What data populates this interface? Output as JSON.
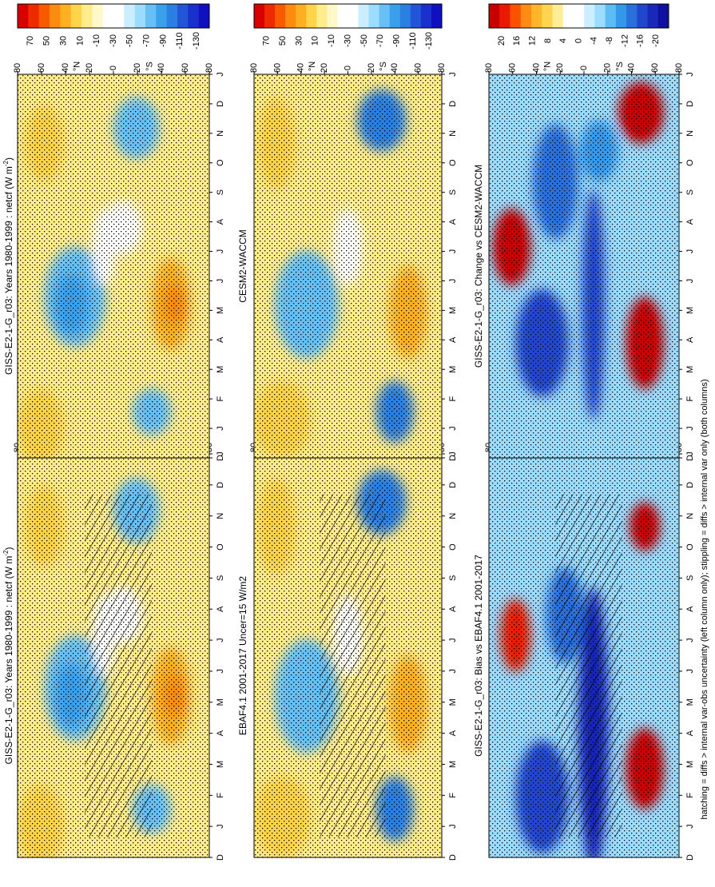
{
  "figure": {
    "footnote": "hatching = diffs > internal var-obs uncertainty (left column only); stippling = diffs > internal var only (both columns)"
  },
  "palettes": {
    "abs": [
      "#d90000",
      "#ee2a00",
      "#f85a00",
      "#fd8b10",
      "#ffb020",
      "#ffd34a",
      "#ffec8a",
      "#fff8c8",
      "#ffffff",
      "#ffffff",
      "#cbeeff",
      "#9cdcff",
      "#66c0f5",
      "#3aa0ea",
      "#2a7fe0",
      "#2255d8",
      "#1a30cc",
      "#1010c0"
    ],
    "diff": [
      "#c80000",
      "#ea1a00",
      "#fb5200",
      "#ff8a14",
      "#ffb42a",
      "#ffd450",
      "#ffee96",
      "#ffffff",
      "#ffffff",
      "#cdeeff",
      "#9bdcff",
      "#5cbcf4",
      "#3498ea",
      "#2a70dc",
      "#2246cc",
      "#1828b8",
      "#1010a0"
    ]
  },
  "panels": [
    {
      "id": "row1-left",
      "title": "GISS-E2-1-G_r03: Years 1980-1999 : netcf (W m",
      "title_sup": "-2",
      "title_end": ")",
      "scale": "abs",
      "hatching": true,
      "colorbar": [
        "70",
        "50",
        "30",
        "10",
        "-10",
        "-30",
        "-50",
        "-70",
        "-90",
        "-110",
        "-130"
      ]
    },
    {
      "id": "row1-right",
      "title": "GISS-E2-1-G_r03: Years 1980-1999 : netcf (W m",
      "title_sup": "-2",
      "title_end": ")",
      "scale": "abs",
      "hatching": false,
      "colorbar": [
        "70",
        "50",
        "30",
        "10",
        "-10",
        "-30",
        "-50",
        "-70",
        "-90",
        "-110",
        "-130"
      ]
    },
    {
      "id": "row2-left",
      "title": "EBAF4.1 2001-2017 Uncer=15 W/m2",
      "scale": "abs",
      "hatching": true,
      "colorbar": [
        "70",
        "50",
        "30",
        "10",
        "-10",
        "-30",
        "-50",
        "-70",
        "-90",
        "-110",
        "-130"
      ]
    },
    {
      "id": "row2-right",
      "title": "CESM2-WACCM",
      "scale": "abs",
      "hatching": false,
      "colorbar": [
        "70",
        "50",
        "30",
        "10",
        "-10",
        "-30",
        "-50",
        "-70",
        "-90",
        "-110",
        "-130"
      ]
    },
    {
      "id": "row3-left",
      "title": "GISS-E2-1-G_r03: Bias vs EBAF4.1 2001-2017",
      "scale": "diff",
      "hatching": true,
      "colorbar": [
        "20",
        "16",
        "12",
        "8",
        "4",
        "0",
        "-4",
        "-8",
        "-12",
        "-16",
        "-20"
      ]
    },
    {
      "id": "row3-right",
      "title": "GISS-E2-1-G_r03: Change vs CESM2-WACCM",
      "scale": "diff",
      "hatching": false,
      "colorbar": [
        "20",
        "16",
        "12",
        "8",
        "4",
        "0",
        "-4",
        "-8",
        "-12",
        "-16",
        "-20"
      ]
    }
  ],
  "chart_data": {
    "type": "heatmap",
    "x": [
      "D",
      "J",
      "F",
      "M",
      "A",
      "M",
      "J",
      "J",
      "A",
      "S",
      "O",
      "N",
      "D",
      "J"
    ],
    "y_ticks": [
      "80",
      "60",
      "40",
      "20",
      "0",
      "20",
      "40",
      "60",
      "80"
    ],
    "y_hemisphere_labels": [
      "°N",
      "°S"
    ],
    "grid": false
  }
}
